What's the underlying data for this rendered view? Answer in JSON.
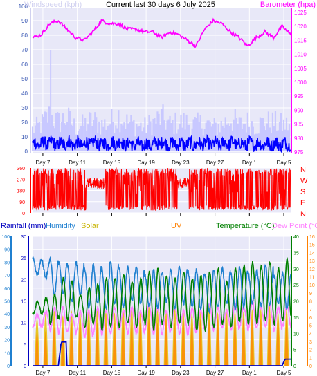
{
  "colors": {
    "background": "#e8e8f8",
    "grid": "#ffffff",
    "title": "#000000",
    "windspeed_avg": "#0000ff",
    "windspeed_gust": "#c8c8ff",
    "windspeed_axis": "#d0d0f0",
    "barometer": "#ff00ff",
    "direction": "#ff0000",
    "rainfall": "#0000c0",
    "humidity": "#2080d0",
    "solar": "#c8b400",
    "uv": "#ff8000",
    "temperature": "#008000",
    "dewpoint": "#ff80ff",
    "solar_fill": "#e6c200"
  },
  "chart_data": [
    {
      "type": "line",
      "title": "Current last 30 days 6 July 2025",
      "x_tick_labels": [
        "Day 7",
        "Day 11",
        "Day 15",
        "Day 19",
        "Day 23",
        "Day 27",
        "Day 1",
        "Day 5"
      ],
      "series": [
        {
          "name": "Windspeed (kph)",
          "axis": "left",
          "ylim": [
            0,
            100
          ],
          "ticks": [
            0,
            10,
            20,
            30,
            40,
            50,
            60,
            70,
            80,
            90,
            100
          ],
          "avg_values": [
            5,
            5,
            6,
            5,
            6,
            5,
            5,
            6,
            5,
            5,
            6,
            5,
            5,
            4,
            5,
            6,
            5,
            5,
            5,
            5,
            5,
            5,
            5,
            6,
            5,
            5,
            5,
            5,
            5,
            5,
            5
          ],
          "gust_values": [
            18,
            22,
            30,
            24,
            28,
            20,
            22,
            26,
            22,
            24,
            30,
            24,
            22,
            20,
            24,
            28,
            22,
            24,
            24,
            22,
            24,
            20,
            22,
            28,
            22,
            24,
            22,
            24,
            24,
            22,
            22
          ],
          "max_gust": 70
        },
        {
          "name": "Barometer (hpa)",
          "axis": "right",
          "ylim": [
            975,
            1025
          ],
          "ticks": [
            975,
            980,
            985,
            990,
            995,
            1000,
            1005,
            1010,
            1015,
            1020,
            1025
          ],
          "values": [
            1016,
            1017,
            1021,
            1022,
            1019,
            1016,
            1015,
            1018,
            1022,
            1021,
            1021,
            1019,
            1019,
            1018,
            1018,
            1016,
            1018,
            1017,
            1015,
            1013,
            1019,
            1022,
            1021,
            1018,
            1016,
            1013,
            1016,
            1018,
            1016,
            1020,
            1017
          ]
        }
      ]
    },
    {
      "type": "scatter",
      "title": "",
      "x_tick_labels": [
        "Day 7",
        "Day 11",
        "Day 15",
        "Day 19",
        "Day 23",
        "Day 27",
        "Day 1",
        "Day 5"
      ],
      "series": [
        {
          "name": "Wind Direction",
          "ylim": [
            0,
            360
          ],
          "ticks": [
            0,
            45,
            90,
            135,
            180,
            225,
            270,
            315,
            360
          ],
          "compass_labels": [
            "N",
            "W",
            "S",
            "E",
            "N"
          ]
        }
      ]
    },
    {
      "type": "line",
      "title": "",
      "x_tick_labels": [
        "Day 7",
        "Day 11",
        "Day 15",
        "Day 19",
        "Day 23",
        "Day 27",
        "Day 1",
        "Day 5"
      ],
      "legend": [
        "Rainfall (mm)",
        "Humidity",
        "Solar",
        "UV",
        "Temperature (°C)",
        "Dew Point (°C)"
      ],
      "axes": {
        "humidity": {
          "ylim": [
            0,
            100
          ],
          "ticks": [
            0,
            10,
            20,
            30,
            40,
            50,
            60,
            70,
            80,
            90,
            100
          ]
        },
        "rainfall": {
          "ylim": [
            0,
            30
          ],
          "ticks": [
            0,
            5,
            10,
            15,
            20,
            25,
            30
          ]
        },
        "temperature": {
          "ylim": [
            0,
            40
          ],
          "ticks": [
            0,
            5,
            10,
            15,
            20,
            25,
            30,
            35,
            40
          ]
        },
        "uv": {
          "ylim": [
            0,
            16
          ],
          "ticks": [
            0,
            1,
            2,
            3,
            4,
            5,
            6,
            7,
            8,
            9,
            10,
            11,
            12,
            13,
            14,
            15,
            16
          ]
        }
      },
      "series": [
        {
          "name": "Temperature (°C)",
          "daily_max": [
            20,
            21,
            22,
            27,
            26,
            22,
            24,
            25,
            27,
            27,
            28,
            26,
            27,
            29,
            30,
            28,
            27,
            29,
            27,
            28,
            29,
            30,
            26,
            30,
            31,
            32,
            31,
            32,
            30,
            33,
            24
          ],
          "daily_min": [
            16,
            16,
            13,
            15,
            14,
            15,
            12,
            13,
            11,
            12,
            12,
            13,
            12,
            13,
            11,
            13,
            12,
            13,
            13,
            11,
            11,
            12,
            13,
            12,
            14,
            13,
            13,
            14,
            13,
            14,
            18
          ]
        },
        {
          "name": "Humidity",
          "daily_max": [
            83,
            82,
            82,
            80,
            78,
            80,
            75,
            78,
            74,
            80,
            75,
            76,
            76,
            70,
            74,
            72,
            75,
            76,
            73,
            74,
            70,
            74,
            75,
            72,
            76,
            72,
            74,
            78,
            70,
            72,
            76
          ],
          "daily_min": [
            70,
            68,
            55,
            56,
            50,
            54,
            45,
            48,
            44,
            48,
            46,
            50,
            48,
            46,
            45,
            50,
            45,
            48,
            46,
            44,
            42,
            45,
            48,
            44,
            46,
            48,
            46,
            47,
            48,
            44,
            60
          ]
        },
        {
          "name": "Dew Point (°C)",
          "daily_max": [
            16,
            17,
            18,
            18,
            16,
            17,
            17,
            18,
            17,
            18,
            17,
            18,
            17,
            19,
            18,
            17,
            18,
            17,
            18,
            17,
            19,
            18,
            17,
            19,
            18,
            20,
            18,
            19,
            18,
            19,
            17
          ],
          "daily_min": [
            12,
            12,
            11,
            10,
            11,
            10,
            9,
            10,
            10,
            10,
            11,
            10,
            10,
            11,
            10,
            10,
            11,
            10,
            10,
            11,
            12,
            11,
            12,
            11,
            12,
            11,
            12,
            12,
            11,
            12,
            10
          ]
        },
        {
          "name": "Rainfall (mm)",
          "values": [
            0,
            0,
            0,
            5.5,
            0,
            0,
            0,
            0,
            0,
            0,
            0,
            0,
            0,
            0,
            0,
            0,
            0,
            0,
            0,
            0,
            0,
            0,
            0,
            0,
            0,
            0,
            0,
            0,
            0,
            1.5,
            0
          ]
        },
        {
          "name": "Solar",
          "daily_peak_pct": [
            70,
            72,
            75,
            78,
            80,
            80,
            82,
            82,
            80,
            82,
            84,
            82,
            82,
            84,
            82,
            84,
            83,
            84,
            82,
            84,
            85,
            84,
            83,
            84,
            85,
            84,
            84,
            85,
            84,
            84,
            70
          ]
        },
        {
          "name": "UV",
          "daily_peak": [
            7,
            7,
            8,
            8,
            9,
            9,
            9,
            9,
            9,
            9,
            10,
            9,
            9,
            10,
            9,
            10,
            9,
            10,
            9,
            10,
            10,
            10,
            9,
            10,
            10,
            10,
            10,
            10,
            10,
            10,
            8
          ]
        }
      ]
    }
  ]
}
